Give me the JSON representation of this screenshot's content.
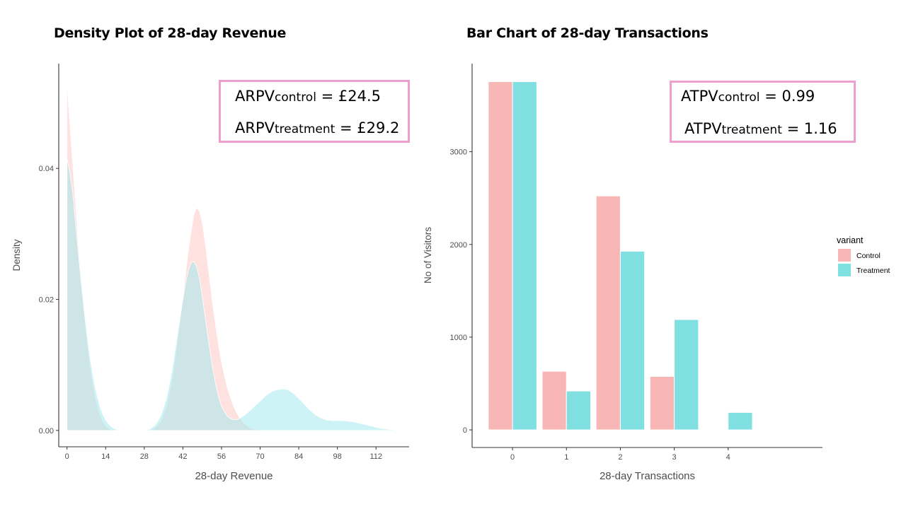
{
  "chart_data": [
    {
      "type": "area",
      "title": "Density Plot of 28-day Revenue",
      "xlabel": "28-day Revenue",
      "ylabel": "Density",
      "xlim": [
        -3,
        124
      ],
      "ylim": [
        -0.0025,
        0.056
      ],
      "x_ticks": [
        0,
        14,
        28,
        42,
        56,
        70,
        84,
        98,
        112
      ],
      "y_ticks": [
        0.0,
        0.02,
        0.04
      ],
      "y_tick_labels": [
        "0.00",
        "0.02",
        "0.04"
      ],
      "grid": false,
      "legend": "none",
      "series": [
        {
          "name": "Control",
          "color": "#ffc9c7",
          "x": [
            0,
            1,
            2,
            3,
            4,
            5,
            6,
            7,
            8,
            9,
            10,
            11,
            12,
            13,
            14,
            15,
            16,
            17,
            18,
            20,
            30,
            32,
            34,
            36,
            38,
            40,
            42,
            43,
            44,
            45,
            46,
            47,
            48,
            49,
            50,
            51,
            52,
            53,
            54,
            55,
            56,
            57,
            58,
            59,
            60,
            61,
            62,
            63,
            64,
            65,
            66,
            68,
            70,
            72,
            74
          ],
          "y": [
            0.053,
            0.047,
            0.041,
            0.035,
            0.029,
            0.024,
            0.019,
            0.0148,
            0.011,
            0.008,
            0.0056,
            0.0037,
            0.0023,
            0.0013,
            0.0007,
            0.0003,
            0.0001,
            3e-05,
            0,
            0,
            0,
            0.0004,
            0.0014,
            0.0036,
            0.0075,
            0.0135,
            0.0205,
            0.024,
            0.0275,
            0.0305,
            0.033,
            0.034,
            0.0335,
            0.0318,
            0.029,
            0.0255,
            0.022,
            0.0186,
            0.0155,
            0.0128,
            0.0104,
            0.0084,
            0.0067,
            0.0053,
            0.0041,
            0.0031,
            0.0023,
            0.0017,
            0.0012,
            0.0008,
            0.0005,
            0.0002,
            8e-05,
            2e-05,
            0
          ]
        },
        {
          "name": "Treatment",
          "color": "#a6e9ee",
          "x": [
            0,
            1,
            2,
            3,
            4,
            5,
            6,
            7,
            8,
            9,
            10,
            11,
            12,
            13,
            14,
            15,
            16,
            17,
            18,
            19,
            20,
            28,
            30,
            32,
            34,
            36,
            38,
            40,
            42,
            43,
            44,
            45,
            46,
            47,
            48,
            49,
            50,
            51,
            52,
            53,
            54,
            55,
            56,
            58,
            60,
            62,
            64,
            66,
            68,
            70,
            72,
            74,
            76,
            78,
            79,
            80,
            82,
            84,
            86,
            88,
            90,
            92,
            94,
            96,
            98,
            100,
            102,
            104,
            106,
            108,
            110,
            112,
            114,
            116,
            118,
            121
          ],
          "y": [
            0.0415,
            0.0395,
            0.0365,
            0.032,
            0.0275,
            0.0232,
            0.0192,
            0.0155,
            0.0122,
            0.0094,
            0.007,
            0.0051,
            0.0036,
            0.0024,
            0.0016,
            0.001,
            0.0006,
            0.0003,
            0.00015,
            5e-05,
            0,
            0,
            0.0002,
            0.0008,
            0.0022,
            0.0048,
            0.009,
            0.0145,
            0.02,
            0.0225,
            0.0245,
            0.0256,
            0.0258,
            0.025,
            0.0232,
            0.0205,
            0.0175,
            0.0145,
            0.0116,
            0.009,
            0.0068,
            0.005,
            0.0037,
            0.0022,
            0.0016,
            0.0017,
            0.0022,
            0.0029,
            0.0037,
            0.0045,
            0.0053,
            0.0059,
            0.0062,
            0.0063,
            0.0063,
            0.0062,
            0.0057,
            0.0049,
            0.004,
            0.0031,
            0.0024,
            0.0019,
            0.0016,
            0.0015,
            0.0015,
            0.0015,
            0.0014,
            0.0013,
            0.0011,
            0.0009,
            0.0007,
            0.0005,
            0.0003,
            0.0002,
            0.0001,
            0
          ]
        }
      ],
      "annotation": {
        "line1": {
          "prefix": "ARPV",
          "sub": "control",
          "suffix": " = £24.5"
        },
        "line2": {
          "prefix": "ARPV",
          "sub": "treatment",
          "suffix": " = £29.2"
        }
      }
    },
    {
      "type": "bar",
      "title": "Bar Chart of 28-day Transactions",
      "xlabel": "28-day Transactions",
      "ylabel": "No of Visitors",
      "categories": [
        "0",
        "1",
        "2",
        "3",
        "4"
      ],
      "xlim": [
        -0.75,
        5.75
      ],
      "ylim": [
        -190,
        3950
      ],
      "y_ticks": [
        0,
        1000,
        2000,
        3000
      ],
      "y_tick_labels": [
        "0",
        "1000",
        "2000",
        "3000"
      ],
      "grid": false,
      "legend": "right",
      "legend_title": "variant",
      "series": [
        {
          "name": "Control",
          "color": "#f8b7b4",
          "values": [
            3755,
            632,
            2523,
            576,
            0
          ]
        },
        {
          "name": "Treatment",
          "color": "#80dfe0",
          "values": [
            3755,
            419,
            1927,
            1190,
            188
          ]
        }
      ],
      "annotation": {
        "line1": {
          "prefix": "ATPV",
          "sub": "control",
          "suffix": " = 0.99"
        },
        "line2": {
          "prefix": "ATPV",
          "sub": "treatment",
          "suffix": " = 1.16"
        }
      }
    }
  ]
}
